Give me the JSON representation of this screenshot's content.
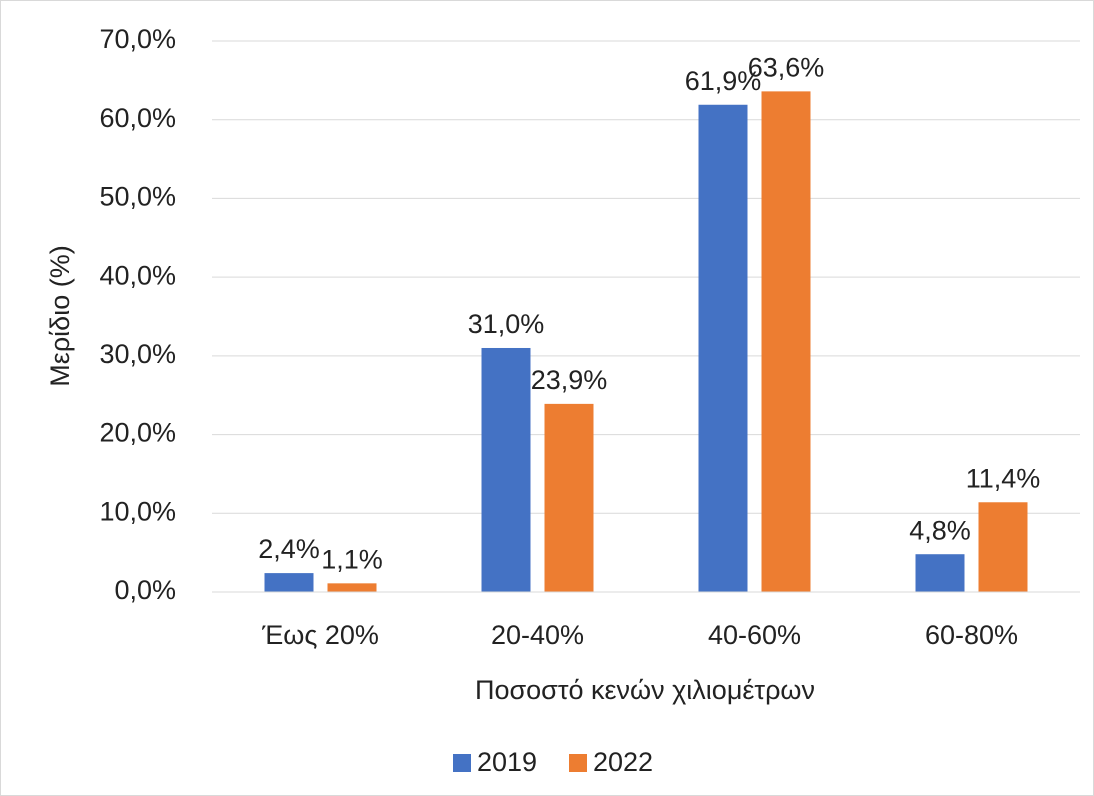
{
  "chart_data": {
    "type": "bar",
    "categories": [
      "Έως 20%",
      "20-40%",
      "40-60%",
      "60-80%"
    ],
    "series": [
      {
        "name": "2019",
        "color": "#4472c4",
        "values": [
          2.4,
          31.0,
          61.9,
          4.8
        ],
        "value_labels": [
          "2,4%",
          "31,0%",
          "61,9%",
          "4,8%"
        ]
      },
      {
        "name": "2022",
        "color": "#ed7d31",
        "values": [
          1.1,
          23.9,
          63.6,
          11.4
        ],
        "value_labels": [
          "1,1%",
          "23,9%",
          "63,6%",
          "11,4%"
        ]
      }
    ],
    "xlabel": "Ποσοστό κενών χιλιομέτρων",
    "ylabel": "Μερίδιο (%)",
    "ylim": [
      0,
      70
    ],
    "yticks": [
      {
        "value": 0,
        "label": "0,0%"
      },
      {
        "value": 10,
        "label": "10,0%"
      },
      {
        "value": 20,
        "label": "20,0%"
      },
      {
        "value": 30,
        "label": "30,0%"
      },
      {
        "value": 40,
        "label": "40,0%"
      },
      {
        "value": 50,
        "label": "50,0%"
      },
      {
        "value": 60,
        "label": "60,0%"
      },
      {
        "value": 70,
        "label": "70,0%"
      }
    ],
    "grid": true,
    "legend": "bottom"
  }
}
